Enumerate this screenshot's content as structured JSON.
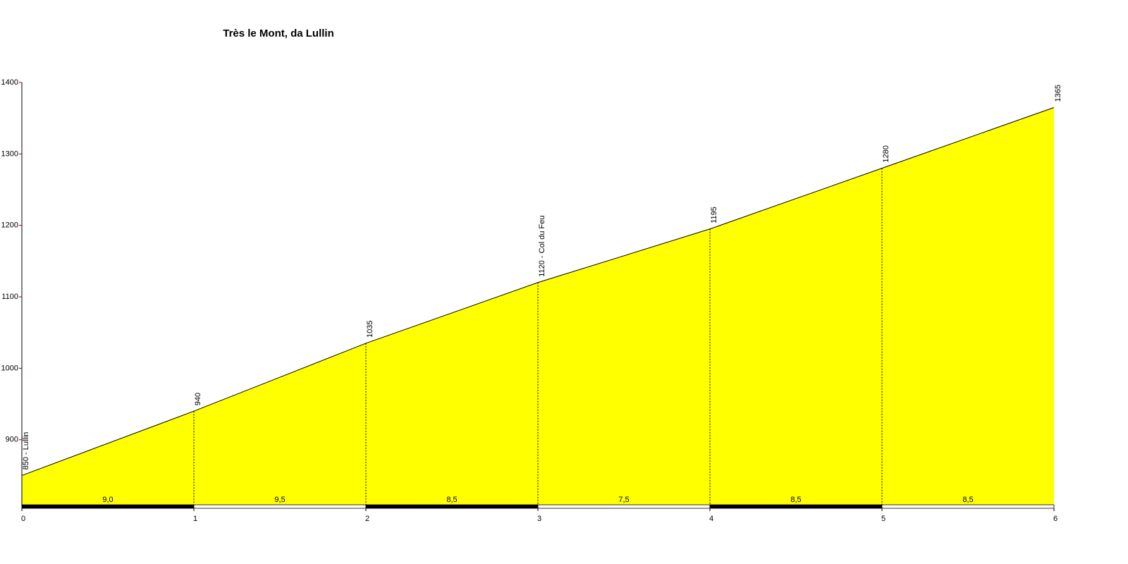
{
  "chart_data": {
    "type": "area",
    "title": "Très le Mont, da Lullin",
    "x": [
      0,
      1,
      2,
      3,
      4,
      5,
      6
    ],
    "xlim": [
      0,
      6
    ],
    "xticks": [
      0,
      1,
      2,
      3,
      4,
      5,
      6
    ],
    "values": [
      850,
      940,
      1035,
      1120,
      1195,
      1280,
      1365
    ],
    "value_labels": [
      "850 - Lullin",
      "940",
      "1035",
      "1120 - Col du Feu",
      "1195",
      "1280",
      "1365"
    ],
    "color": "#ffff00",
    "ylim": [
      807,
      1400
    ],
    "yticks": [
      900,
      1000,
      1100,
      1200,
      1300,
      1400
    ],
    "gradients": {
      "values": [
        9.0,
        9.5,
        8.5,
        7.5,
        8.5,
        8.5
      ],
      "value_labels": [
        "9,0",
        "9,5",
        "8,5",
        "7,5",
        "8,5",
        "8,5"
      ],
      "colors": [
        "#000000",
        "#ffffff"
      ]
    }
  }
}
